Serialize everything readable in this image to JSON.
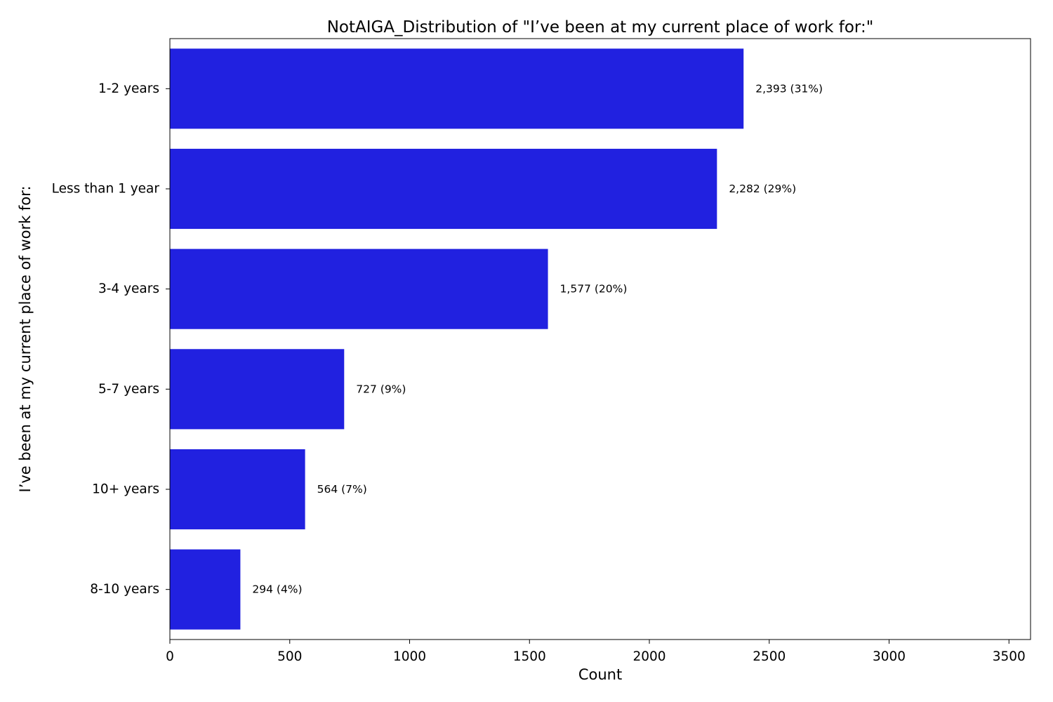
{
  "chart_data": {
    "type": "bar",
    "orientation": "horizontal",
    "title": "NotAIGA_Distribution of \"I’ve been at my current place of work for:\"",
    "xlabel": "Count",
    "ylabel": "I’ve been at my current place of work for:",
    "categories": [
      "1-2 years",
      "Less than 1 year",
      "3-4 years",
      "5-7 years",
      "10+ years",
      "8-10 years"
    ],
    "values": [
      2393,
      2282,
      1577,
      727,
      564,
      294
    ],
    "data_labels": [
      "2,393 (31%)",
      "2,282 (29%)",
      "1,577 (20%)",
      "727 (9%)",
      "564 (7%)",
      "294 (4%)"
    ],
    "xlim": [
      0,
      3590
    ],
    "xticks": [
      0,
      500,
      1000,
      1500,
      2000,
      2500,
      3000,
      3500
    ],
    "xtick_labels": [
      "0",
      "500",
      "1000",
      "1500",
      "2000",
      "2500",
      "3000",
      "3500"
    ],
    "bar_color": "#2121e0",
    "grid": false,
    "legend": "none"
  }
}
